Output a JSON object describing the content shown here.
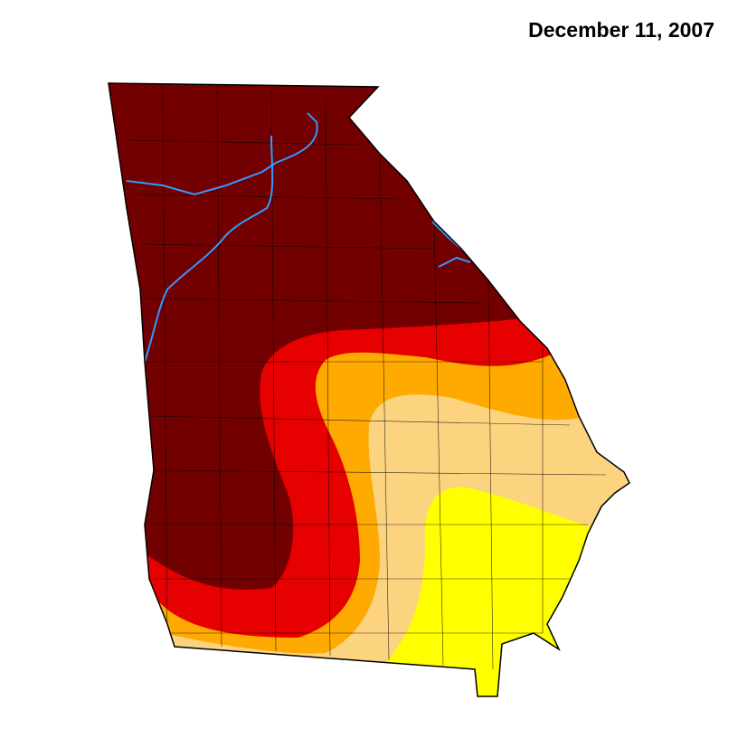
{
  "title": "December 11, 2007",
  "colors": {
    "exceptional": "#730000",
    "extreme": "#E60000",
    "severe": "#FFAA00",
    "moderate": "#FCD37F",
    "abnormally_dry": "#FFFF00",
    "river": "#3399FF",
    "border": "#000000"
  }
}
